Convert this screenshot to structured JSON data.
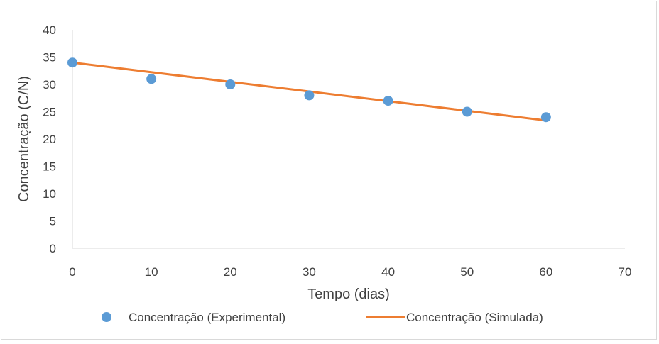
{
  "chart_data": {
    "type": "scatter",
    "xlabel": "Tempo (dias)",
    "ylabel": "Concentração (C/N)",
    "xlim": [
      0,
      70
    ],
    "ylim": [
      0,
      40
    ],
    "x_ticks": [
      0,
      10,
      20,
      30,
      40,
      50,
      60,
      70
    ],
    "y_ticks": [
      0,
      5,
      10,
      15,
      20,
      25,
      30,
      35,
      40
    ],
    "grid": false,
    "legend_position": "bottom",
    "series": [
      {
        "name": "Concentração (Experimental)",
        "kind": "markers",
        "color": "#5b9bd5",
        "x": [
          0,
          10,
          20,
          30,
          40,
          50,
          60
        ],
        "y": [
          34,
          31,
          30,
          28,
          27,
          25,
          24
        ]
      },
      {
        "name": "Concentração (Simulada)",
        "kind": "line",
        "color": "#ed7d31",
        "x": [
          0,
          60
        ],
        "y": [
          34,
          23.4
        ]
      }
    ]
  }
}
